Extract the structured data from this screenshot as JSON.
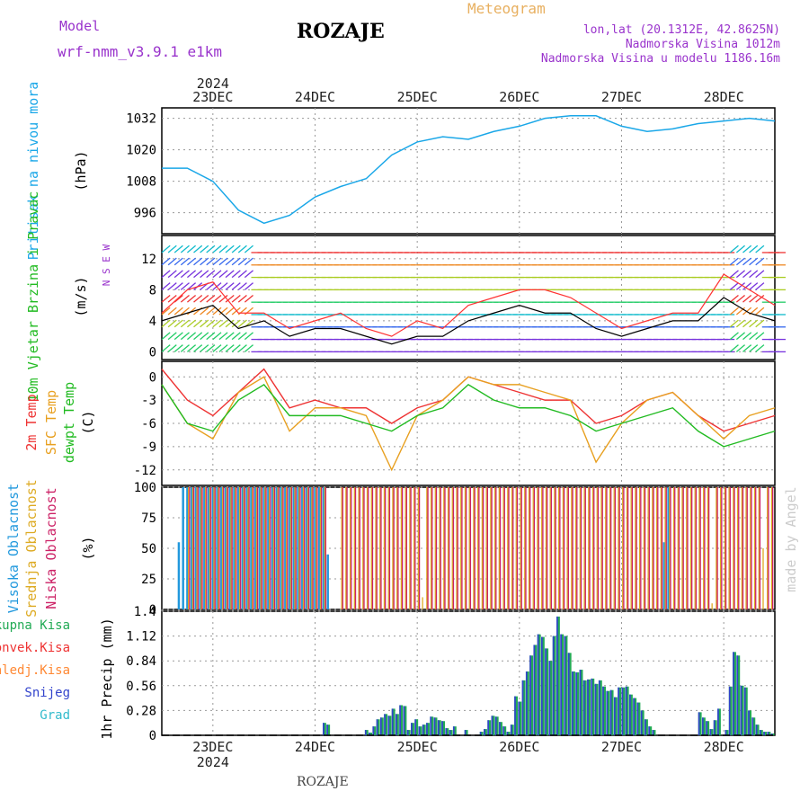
{
  "header": {
    "model_label": "Model",
    "model_name": "wrf-nmm_v3.9.1 e1km",
    "title": "ROZAJE",
    "meteogram_label": "Meteogram",
    "coords": "lon,lat (20.1312E, 42.8625N)",
    "elevation": "Nadmorska Visina 1012m",
    "model_elevation": "Nadmorska Visina u modelu 1186.16m",
    "footer_station": "ROZAJE",
    "watermark": "made by Angel"
  },
  "time_axis": {
    "year_top": "2024",
    "year_bottom": "2024",
    "days": [
      "23DEC",
      "24DEC",
      "25DEC",
      "26DEC",
      "27DEC",
      "28DEC"
    ],
    "start": "2024-12-22T12:00",
    "end": "2024-12-28T12:00"
  },
  "colors": {
    "pressure": "#1aa7e8",
    "speed": "#000000",
    "gust": "#ff3333",
    "t2m": "#ee3333",
    "tsfc": "#e8a020",
    "dewpt": "#22bb22",
    "cloud_high": "#2299dd",
    "cloud_mid": "#ddaa22",
    "cloud_low": "#cc2266",
    "precip_total": "#22aa55",
    "precip_snow": "#3344cc"
  },
  "chart_data": [
    {
      "type": "line",
      "name": "pressure",
      "ylabel": "Pritisak na nivou mora",
      "unit": "(hPa)",
      "yticks": [
        996,
        1008,
        1020,
        1032
      ],
      "ylim": [
        988,
        1036
      ],
      "grid": true,
      "x_hours": [
        0,
        6,
        12,
        18,
        24,
        30,
        36,
        42,
        48,
        54,
        60,
        66,
        72,
        78,
        84,
        90,
        96,
        102,
        108,
        114,
        120,
        126,
        132,
        138,
        144
      ],
      "values": [
        1013,
        1013,
        1008,
        997,
        992,
        995,
        1002,
        1006,
        1009,
        1018,
        1023,
        1025,
        1024,
        1027,
        1029,
        1032,
        1033,
        1033,
        1029,
        1027,
        1028,
        1030,
        1031,
        1032,
        1031
      ],
      "series": [
        {
          "name": "Pritisak na nivou mora"
        }
      ]
    },
    {
      "type": "line",
      "name": "wind",
      "ylabel": "10m Vjetar Brzina i Pravac",
      "unit": "(m/s)",
      "compass": "N S E W",
      "yticks": [
        0,
        4,
        8,
        12
      ],
      "ylim": [
        -1,
        15
      ],
      "grid": true,
      "x_hours": [
        0,
        6,
        12,
        18,
        24,
        30,
        36,
        42,
        48,
        54,
        60,
        66,
        72,
        78,
        84,
        90,
        96,
        102,
        108,
        114,
        120,
        126,
        132,
        138,
        144
      ],
      "speed": [
        4,
        5,
        6,
        3,
        4,
        2,
        3,
        3,
        2,
        1,
        2,
        2,
        4,
        5,
        6,
        5,
        5,
        3,
        2,
        3,
        4,
        4,
        7,
        5,
        4
      ],
      "gust": [
        5,
        8,
        9,
        5,
        5,
        3,
        4,
        5,
        3,
        2,
        4,
        3,
        6,
        7,
        8,
        8,
        7,
        5,
        3,
        4,
        5,
        5,
        10,
        8,
        6
      ],
      "series": [
        {
          "name": "speed"
        },
        {
          "name": "gust"
        }
      ]
    },
    {
      "type": "line",
      "name": "temperature",
      "ylabel": "2m Temp / SFC Temp / dewpt Temp",
      "unit": "(C)",
      "yticks": [
        0,
        -3,
        -6,
        -9,
        -12
      ],
      "ylim": [
        -14,
        2
      ],
      "grid": true,
      "x_hours": [
        0,
        6,
        12,
        18,
        24,
        30,
        36,
        42,
        48,
        54,
        60,
        66,
        72,
        78,
        84,
        90,
        96,
        102,
        108,
        114,
        120,
        126,
        132,
        138,
        144
      ],
      "series": [
        {
          "name": "2m Temp",
          "values": [
            1,
            -3,
            -5,
            -2,
            1,
            -4,
            -3,
            -4,
            -4,
            -6,
            -4,
            -3,
            0,
            -1,
            -2,
            -3,
            -3,
            -6,
            -5,
            -3,
            -2,
            -5,
            -7,
            -6,
            -5
          ]
        },
        {
          "name": "SFC Temp",
          "values": [
            -1,
            -6,
            -8,
            -2,
            0,
            -7,
            -4,
            -4,
            -5,
            -12,
            -5,
            -3,
            0,
            -1,
            -1,
            -2,
            -3,
            -11,
            -6,
            -3,
            -2,
            -5,
            -8,
            -5,
            -4
          ]
        },
        {
          "name": "dewpt Temp",
          "values": [
            -1,
            -6,
            -7,
            -3,
            -1,
            -5,
            -5,
            -5,
            -6,
            -7,
            -5,
            -4,
            -1,
            -3,
            -4,
            -4,
            -5,
            -7,
            -6,
            -5,
            -4,
            -7,
            -9,
            -8,
            -7
          ]
        }
      ]
    },
    {
      "type": "bar",
      "name": "clouds",
      "ylabel": "Visoka Oblacnost / Srednja Oblacnost / Niska Oblacnost",
      "unit": "(%)",
      "yticks": [
        0,
        25,
        50,
        75,
        100
      ],
      "ylim": [
        0,
        100
      ],
      "grid": true,
      "series": [
        {
          "name": "Visoka Oblacnost",
          "values": [
            55,
            100,
            100,
            100,
            100,
            100,
            100,
            100,
            100,
            100,
            100,
            100,
            100,
            100,
            100,
            100,
            100,
            100,
            100,
            100,
            100,
            100,
            100,
            100,
            100,
            100,
            100,
            100,
            100,
            100,
            100,
            100,
            100,
            100,
            100,
            45,
            0,
            0,
            0,
            0,
            0,
            0,
            0,
            0,
            0,
            0,
            0,
            0,
            0,
            0,
            0,
            0,
            0,
            0,
            0,
            0,
            0,
            0,
            0,
            0,
            0,
            0,
            0,
            0,
            0,
            0,
            0,
            0,
            0,
            0,
            0,
            0,
            0,
            0,
            0,
            0,
            0,
            0,
            0,
            0,
            0,
            0,
            0,
            0,
            0,
            0,
            0,
            0,
            0,
            0,
            0,
            0,
            0,
            0,
            0,
            0,
            0,
            0,
            0,
            0,
            0,
            0,
            0,
            0,
            0,
            0,
            0,
            0,
            0,
            0,
            0,
            0,
            0,
            0,
            55,
            100,
            0,
            0,
            0,
            0,
            0,
            0,
            0,
            0,
            0,
            0,
            0,
            0,
            0,
            0,
            0,
            0,
            0,
            0,
            0,
            0,
            0,
            0,
            0,
            0
          ]
        },
        {
          "name": "Srednja Oblacnost",
          "values": [
            0,
            0,
            100,
            100,
            100,
            100,
            100,
            100,
            100,
            100,
            100,
            100,
            100,
            100,
            100,
            100,
            100,
            100,
            100,
            100,
            100,
            100,
            100,
            100,
            100,
            100,
            100,
            100,
            100,
            100,
            100,
            100,
            100,
            100,
            100,
            0,
            0,
            0,
            100,
            100,
            100,
            100,
            100,
            100,
            100,
            100,
            100,
            100,
            100,
            100,
            100,
            100,
            100,
            100,
            100,
            100,
            100,
            10,
            100,
            100,
            100,
            100,
            100,
            100,
            100,
            100,
            100,
            100,
            100,
            100,
            100,
            100,
            100,
            100,
            100,
            100,
            100,
            100,
            100,
            100,
            100,
            100,
            100,
            100,
            100,
            100,
            100,
            100,
            100,
            100,
            100,
            100,
            100,
            100,
            100,
            100,
            100,
            100,
            100,
            100,
            100,
            100,
            100,
            100,
            100,
            100,
            100,
            100,
            100,
            100,
            100,
            100,
            100,
            100,
            100,
            100,
            100,
            100,
            100,
            100,
            100,
            100,
            100,
            100,
            100,
            5,
            100,
            100,
            100,
            100,
            100,
            100,
            100,
            100,
            100,
            100,
            100,
            50,
            100,
            100
          ]
        },
        {
          "name": "Niska Oblacnost",
          "values": [
            0,
            0,
            100,
            100,
            100,
            100,
            100,
            100,
            100,
            100,
            100,
            100,
            100,
            100,
            100,
            100,
            100,
            100,
            100,
            100,
            100,
            100,
            100,
            100,
            100,
            100,
            100,
            100,
            100,
            100,
            100,
            100,
            100,
            100,
            100,
            0,
            0,
            0,
            100,
            100,
            100,
            100,
            100,
            100,
            100,
            100,
            100,
            100,
            100,
            100,
            100,
            100,
            100,
            100,
            100,
            100,
            100,
            0,
            100,
            100,
            100,
            100,
            100,
            100,
            100,
            100,
            100,
            100,
            100,
            100,
            100,
            100,
            100,
            100,
            100,
            100,
            100,
            100,
            100,
            100,
            100,
            100,
            100,
            100,
            100,
            100,
            100,
            100,
            100,
            100,
            100,
            100,
            100,
            100,
            100,
            100,
            100,
            100,
            100,
            100,
            100,
            100,
            100,
            100,
            100,
            100,
            100,
            100,
            100,
            100,
            100,
            100,
            100,
            100,
            100,
            100,
            100,
            100,
            100,
            100,
            100,
            100,
            100,
            100,
            100,
            0,
            100,
            100,
            100,
            100,
            100,
            100,
            100,
            100,
            100,
            100,
            100,
            0,
            100,
            100
          ]
        }
      ]
    },
    {
      "type": "bar",
      "name": "precip",
      "ylabel": "1hr Precip (mm)",
      "yticks": [
        0,
        0.28,
        0.56,
        0.84,
        1.12,
        1.4
      ],
      "ylim": [
        0,
        1.4
      ],
      "grid": true,
      "legend": [
        "Ukupna Kisa",
        "Konvek.Kisa",
        "Zaledj.Kisa",
        "Snijeg",
        "Grad"
      ],
      "legend_colors": [
        "#22aa55",
        "#ee3333",
        "#ff8833",
        "#3344cc",
        "#33bbcc"
      ],
      "series": [
        {
          "name": "Ukupna Kisa",
          "values": [
            0,
            0,
            0,
            0,
            0,
            0,
            0,
            0,
            0,
            0,
            0,
            0,
            0,
            0,
            0,
            0,
            0,
            0,
            0,
            0,
            0,
            0,
            0,
            0,
            0,
            0,
            0,
            0,
            0,
            0,
            0,
            0,
            0,
            0,
            0,
            0,
            0,
            0,
            0,
            0,
            0,
            0,
            0.14,
            0.12,
            0,
            0,
            0,
            0,
            0,
            0,
            0,
            0,
            0,
            0.06,
            0.03,
            0.1,
            0.18,
            0.2,
            0.24,
            0.22,
            0.3,
            0.24,
            0.34,
            0.33,
            0.06,
            0.14,
            0.18,
            0.1,
            0.12,
            0.14,
            0.21,
            0.2,
            0.17,
            0.16,
            0.08,
            0.06,
            0.1,
            0,
            0,
            0.06,
            0,
            0,
            0,
            0.04,
            0.07,
            0.17,
            0.22,
            0.21,
            0.15,
            0.1,
            0.04,
            0.12,
            0.44,
            0.38,
            0.62,
            0.72,
            0.9,
            1.02,
            1.14,
            1.11,
            0.98,
            0.84,
            1.12,
            1.34,
            1.14,
            1.12,
            0.93,
            0.72,
            0.71,
            0.74,
            0.62,
            0.63,
            0.64,
            0.58,
            0.62,
            0.55,
            0.5,
            0.51,
            0.43,
            0.54,
            0.54,
            0.55,
            0.46,
            0.42,
            0.37,
            0.28,
            0.18,
            0.1,
            0.06,
            0,
            0,
            0,
            0,
            0,
            0,
            0,
            0,
            0,
            0,
            0,
            0.26,
            0.2,
            0.16,
            0.07,
            0.17,
            0.3,
            0,
            0.06,
            0.55,
            0.94,
            0.9,
            0.56,
            0.54,
            0.28,
            0.2,
            0.12,
            0.06,
            0.04,
            0.04,
            0.02
          ]
        },
        {
          "name": "Snijeg",
          "values": [
            0,
            0,
            0,
            0,
            0,
            0,
            0,
            0,
            0,
            0,
            0,
            0,
            0,
            0,
            0,
            0,
            0,
            0,
            0,
            0,
            0,
            0,
            0,
            0,
            0,
            0,
            0,
            0,
            0,
            0,
            0,
            0,
            0,
            0,
            0,
            0,
            0,
            0,
            0,
            0,
            0,
            0,
            0.14,
            0.12,
            0,
            0,
            0,
            0,
            0,
            0,
            0,
            0,
            0,
            0.06,
            0.03,
            0.1,
            0.18,
            0.2,
            0.24,
            0.22,
            0.3,
            0.24,
            0.34,
            0.33,
            0.06,
            0.14,
            0.18,
            0.1,
            0.12,
            0.14,
            0.21,
            0.2,
            0.17,
            0.16,
            0.08,
            0.06,
            0.1,
            0,
            0,
            0.06,
            0,
            0,
            0,
            0.04,
            0.07,
            0.17,
            0.22,
            0.21,
            0.15,
            0.1,
            0.04,
            0.12,
            0.44,
            0.38,
            0.62,
            0.72,
            0.9,
            1.02,
            1.14,
            1.11,
            0.98,
            0.84,
            1.12,
            1.34,
            1.14,
            1.12,
            0.93,
            0.72,
            0.71,
            0.74,
            0.62,
            0.63,
            0.64,
            0.58,
            0.62,
            0.55,
            0.5,
            0.51,
            0.43,
            0.54,
            0.54,
            0.55,
            0.46,
            0.42,
            0.37,
            0.28,
            0.18,
            0.1,
            0.06,
            0,
            0,
            0,
            0,
            0,
            0,
            0,
            0,
            0,
            0,
            0,
            0.26,
            0.2,
            0.16,
            0.07,
            0.17,
            0.3,
            0,
            0.06,
            0.55,
            0.94,
            0.9,
            0.56,
            0.54,
            0.28,
            0.2,
            0.12,
            0.06,
            0.04,
            0.04,
            0.02
          ]
        }
      ]
    }
  ]
}
